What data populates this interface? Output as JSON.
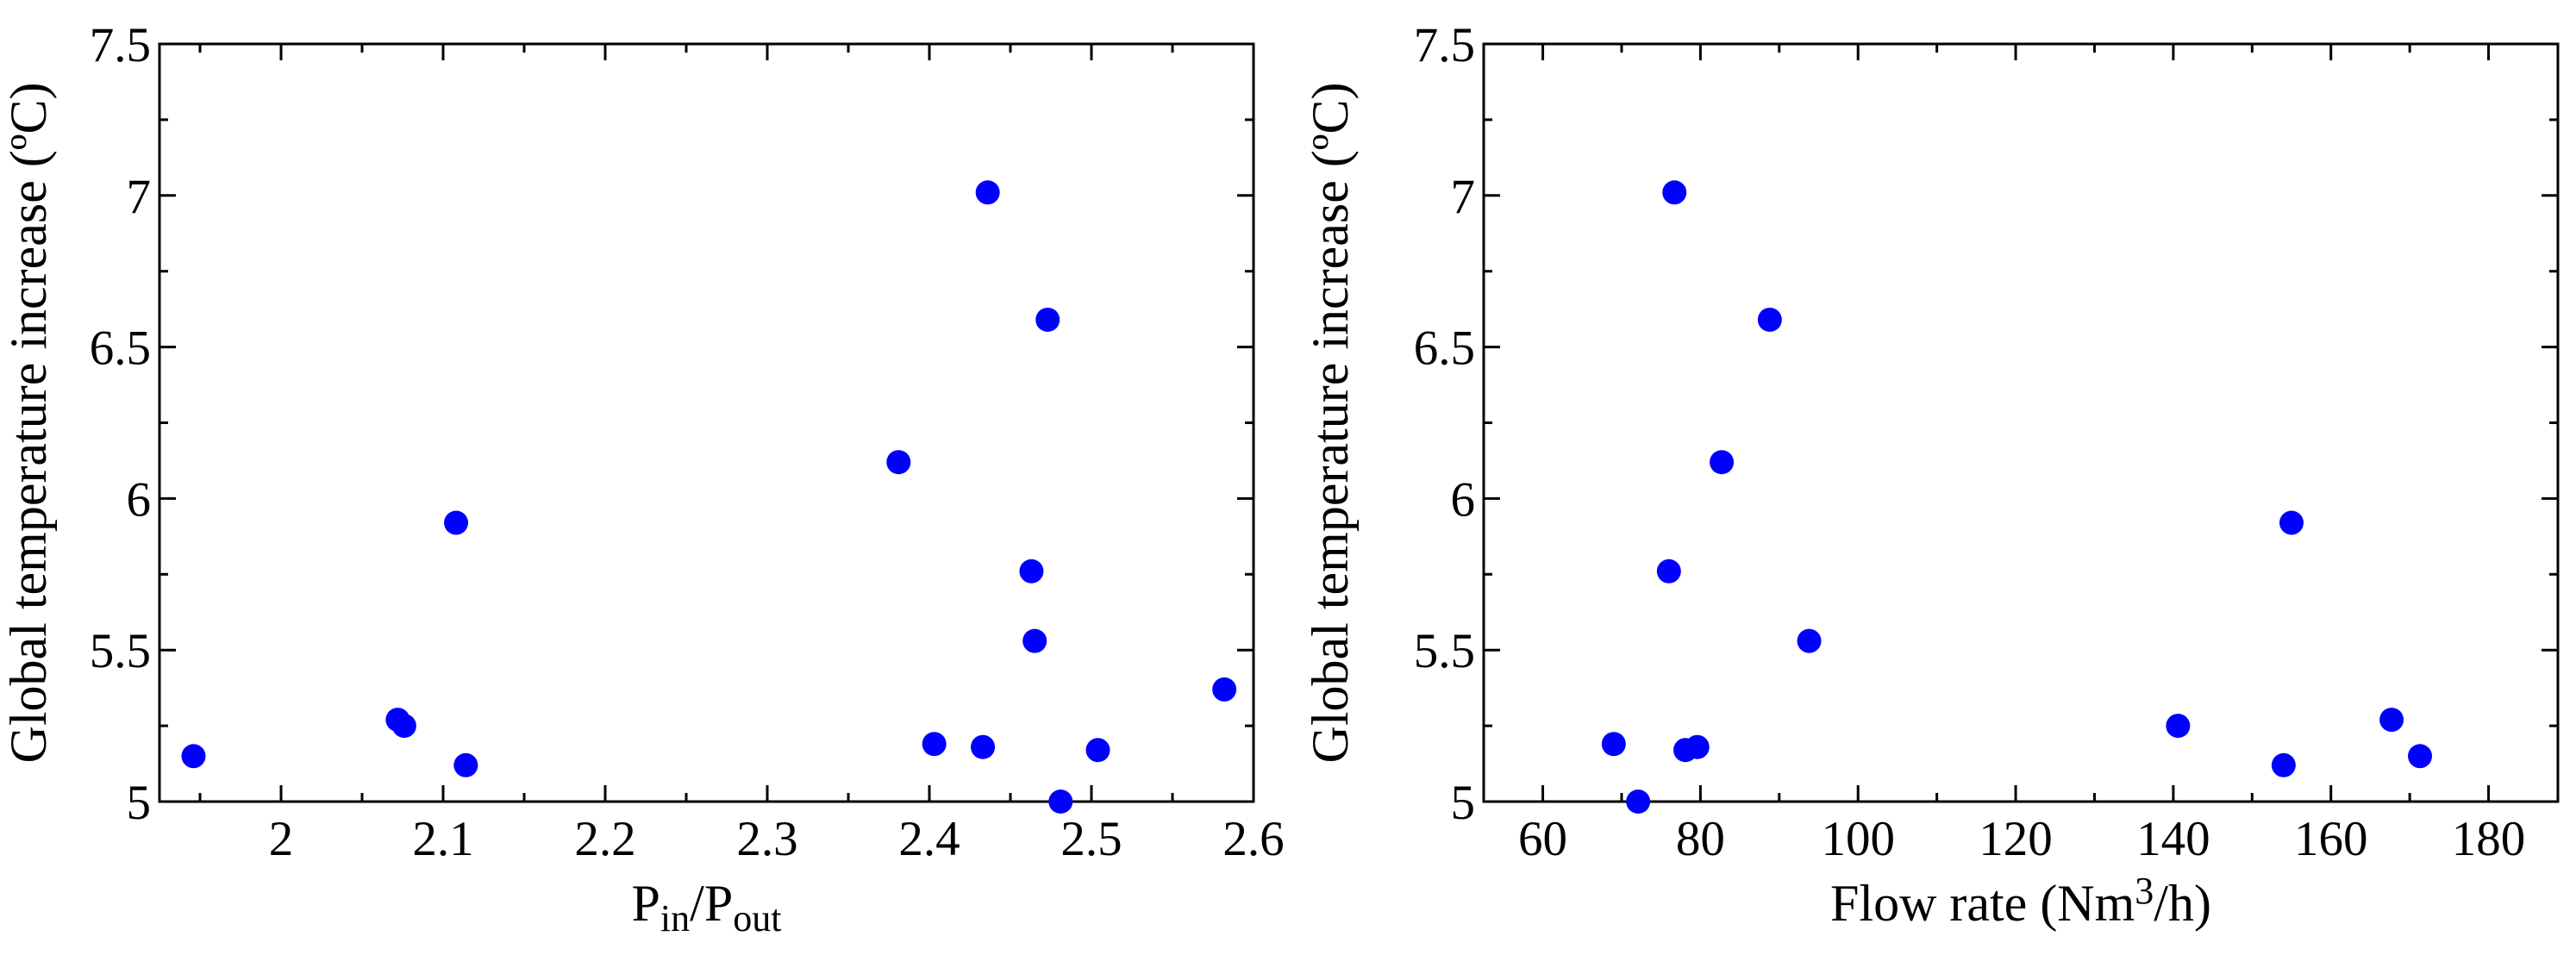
{
  "chart_data": [
    {
      "type": "scatter",
      "ylabel": "Global temperature increase (ºC)",
      "xlabel": [
        "P",
        "in",
        "/P",
        "out"
      ],
      "xlabel_format": [
        "normal",
        "sub",
        "normal",
        "sub"
      ],
      "color": "#0000ff",
      "x": [
        1.946,
        2.072,
        2.076,
        2.108,
        2.114,
        2.381,
        2.403,
        2.433,
        2.436,
        2.473,
        2.463,
        2.465,
        2.481,
        2.504,
        2.582
      ],
      "values": [
        5.15,
        5.27,
        5.25,
        5.92,
        5.12,
        6.12,
        5.19,
        5.18,
        7.01,
        6.59,
        5.76,
        5.53,
        5.0,
        5.17,
        5.37
      ],
      "xlim": [
        1.925,
        2.6
      ],
      "ylim": [
        5,
        7.5
      ],
      "xticks": [
        2,
        2.1,
        2.2,
        2.3,
        2.4,
        2.5,
        2.6
      ],
      "xminorticks": [
        1.95,
        2.05,
        2.15,
        2.25,
        2.35,
        2.45,
        2.55
      ],
      "yticks": [
        5,
        5.5,
        6,
        6.5,
        7,
        7.5
      ],
      "yminorticks": [
        5.25,
        5.75,
        6.25,
        6.75,
        7.25
      ]
    },
    {
      "type": "scatter",
      "ylabel": "Global temperature increase (ºC)",
      "xlabel": [
        "Flow rate (Nm",
        "3",
        "/h)"
      ],
      "xlabel_format": [
        "normal",
        "sup",
        "normal"
      ],
      "color": "#0000ff",
      "x": [
        69,
        72.1,
        76,
        76.7,
        78.1,
        79.6,
        82.7,
        88.8,
        93.8,
        140.6,
        154,
        155,
        167.7,
        171.3
      ],
      "values": [
        5.19,
        5.0,
        5.76,
        7.01,
        5.17,
        5.18,
        6.12,
        6.59,
        5.53,
        5.25,
        5.12,
        5.92,
        5.27,
        5.15
      ],
      "xlim": [
        52.5,
        188.8
      ],
      "ylim": [
        5,
        7.5
      ],
      "xticks": [
        60,
        80,
        100,
        120,
        140,
        160,
        180
      ],
      "xminorticks": [
        70,
        90,
        110,
        130,
        150,
        170
      ],
      "yticks": [
        5,
        5.5,
        6,
        6.5,
        7,
        7.5
      ],
      "yminorticks": [
        5.25,
        5.75,
        6.25,
        6.75,
        7.25
      ]
    }
  ]
}
